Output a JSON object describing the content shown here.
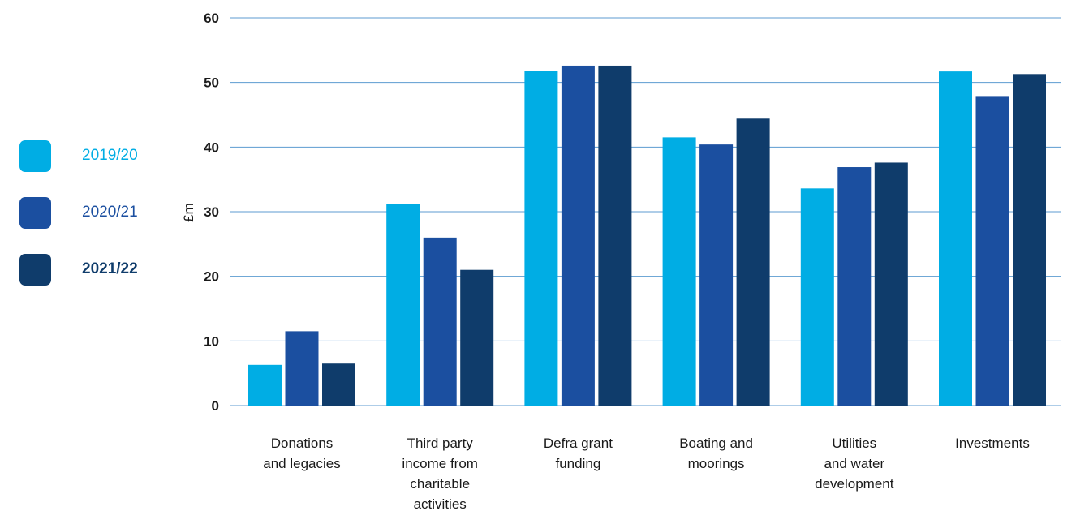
{
  "chart_data": {
    "type": "bar",
    "ylabel": "£m",
    "xlabel": "",
    "ylim": [
      0,
      60
    ],
    "yticks": [
      0,
      10,
      20,
      30,
      40,
      50,
      60
    ],
    "grid": true,
    "legend_placement": "left",
    "categories": [
      [
        "Donations",
        "and legacies"
      ],
      [
        "Third party",
        "income from",
        "charitable",
        "activities"
      ],
      [
        "Defra grant",
        "funding"
      ],
      [
        "Boating and",
        "moorings"
      ],
      [
        "Utilities",
        "and water",
        "development"
      ],
      [
        "Investments"
      ]
    ],
    "series": [
      {
        "name": "2019/20",
        "color": "#00ade4",
        "label_color": "#00ade4",
        "bold": false,
        "values": [
          6.3,
          31.2,
          51.8,
          41.5,
          33.6,
          51.7
        ]
      },
      {
        "name": "2020/21",
        "color": "#1b4fa0",
        "label_color": "#1b4fa0",
        "bold": false,
        "values": [
          11.5,
          26.0,
          52.6,
          40.4,
          36.9,
          47.9
        ]
      },
      {
        "name": "2021/22",
        "color": "#0f3c6b",
        "label_color": "#0f3c6b",
        "bold": true,
        "values": [
          6.5,
          21.0,
          52.6,
          44.4,
          37.6,
          51.3
        ]
      }
    ],
    "colors": {
      "grid": "#5c9bd1",
      "axis_text": "#1a1a1a"
    }
  }
}
